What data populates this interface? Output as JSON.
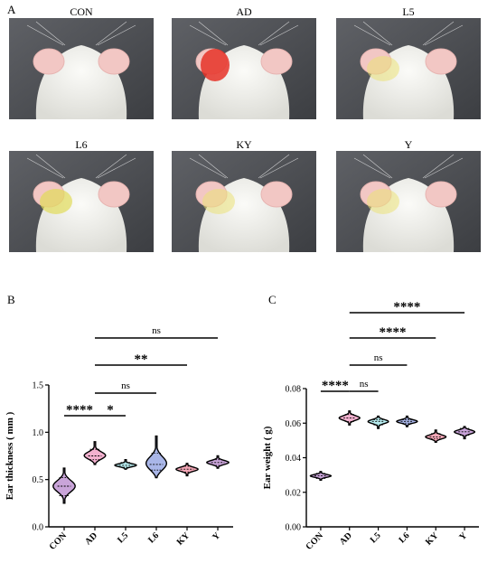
{
  "panel_a": {
    "letter": "A",
    "photos": [
      {
        "label": "CON",
        "redness": "none"
      },
      {
        "label": "AD",
        "redness": "severe"
      },
      {
        "label": "L5",
        "redness": "mild"
      },
      {
        "label": "L6",
        "redness": "moderate"
      },
      {
        "label": "KY",
        "redness": "mild"
      },
      {
        "label": "Y",
        "redness": "mild"
      }
    ]
  },
  "chart_data": [
    {
      "panel": "B",
      "type": "violin",
      "ylabel": "Ear thickness ( mm )",
      "categories": [
        "CON",
        "AD",
        "L5",
        "L6",
        "KY",
        "Y"
      ],
      "yticks": [
        "0.0",
        "0.5",
        "1.0",
        "1.5"
      ],
      "ylim": [
        0,
        1.5
      ],
      "groups": [
        {
          "name": "CON",
          "min": 0.25,
          "max": 0.62,
          "median": 0.43,
          "q1": 0.33,
          "q3": 0.52,
          "color": "#c9a4d9"
        },
        {
          "name": "AD",
          "min": 0.66,
          "max": 0.9,
          "median": 0.75,
          "q1": 0.71,
          "q3": 0.82,
          "color": "#f3b1cf"
        },
        {
          "name": "L5",
          "min": 0.61,
          "max": 0.71,
          "median": 0.65,
          "q1": 0.63,
          "q3": 0.68,
          "color": "#b7ecef"
        },
        {
          "name": "L6",
          "min": 0.52,
          "max": 0.96,
          "median": 0.66,
          "q1": 0.6,
          "q3": 0.78,
          "color": "#a9b6e8"
        },
        {
          "name": "KY",
          "min": 0.54,
          "max": 0.67,
          "median": 0.61,
          "q1": 0.58,
          "q3": 0.64,
          "color": "#f6a8b8"
        },
        {
          "name": "Y",
          "min": 0.62,
          "max": 0.75,
          "median": 0.68,
          "q1": 0.65,
          "q3": 0.71,
          "color": "#c9a4d9"
        }
      ],
      "significance": [
        {
          "from": "CON",
          "to": "AD",
          "label": "****"
        },
        {
          "from": "AD",
          "to": "L5",
          "label": "*"
        },
        {
          "from": "AD",
          "to": "L6",
          "label": "ns"
        },
        {
          "from": "AD",
          "to": "KY",
          "label": "**"
        },
        {
          "from": "AD",
          "to": "Y",
          "label": "ns"
        }
      ]
    },
    {
      "panel": "C",
      "type": "violin",
      "ylabel": "Ear weight ( g)",
      "categories": [
        "CON",
        "AD",
        "L5",
        "L6",
        "KY",
        "Y"
      ],
      "yticks": [
        "0.00",
        "0.02",
        "0.04",
        "0.06",
        "0.08"
      ],
      "ylim": [
        0,
        0.08
      ],
      "groups": [
        {
          "name": "CON",
          "min": 0.027,
          "max": 0.032,
          "median": 0.0295,
          "q1": 0.028,
          "q3": 0.031,
          "color": "#c9a4d9"
        },
        {
          "name": "AD",
          "min": 0.059,
          "max": 0.067,
          "median": 0.063,
          "q1": 0.061,
          "q3": 0.065,
          "color": "#f3b1cf"
        },
        {
          "name": "L5",
          "min": 0.057,
          "max": 0.064,
          "median": 0.061,
          "q1": 0.059,
          "q3": 0.062,
          "color": "#b7ecef"
        },
        {
          "name": "L6",
          "min": 0.058,
          "max": 0.064,
          "median": 0.061,
          "q1": 0.06,
          "q3": 0.062,
          "color": "#a9b6e8"
        },
        {
          "name": "KY",
          "min": 0.049,
          "max": 0.056,
          "median": 0.052,
          "q1": 0.051,
          "q3": 0.054,
          "color": "#f6a8b8"
        },
        {
          "name": "Y",
          "min": 0.051,
          "max": 0.058,
          "median": 0.055,
          "q1": 0.053,
          "q3": 0.057,
          "color": "#c9a4d9"
        }
      ],
      "significance": [
        {
          "from": "CON",
          "to": "AD",
          "label": "****"
        },
        {
          "from": "AD",
          "to": "L5",
          "label": "ns"
        },
        {
          "from": "AD",
          "to": "L6",
          "label": "ns"
        },
        {
          "from": "AD",
          "to": "KY",
          "label": "****"
        },
        {
          "from": "AD",
          "to": "Y",
          "label": "****"
        }
      ]
    }
  ]
}
